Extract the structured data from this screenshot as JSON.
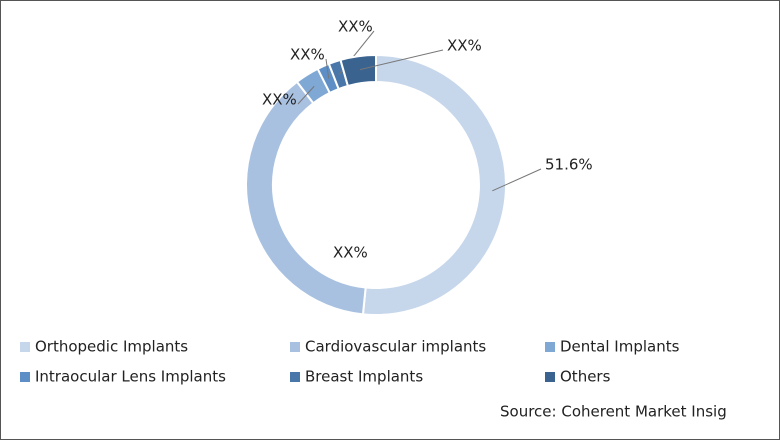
{
  "chart_data": {
    "type": "donut",
    "categories": [
      "Orthopedic Implants",
      "Cardiovascular implants",
      "Dental Implants",
      "Intraocular Lens Implants",
      "Breast Implants",
      "Others"
    ],
    "values": [
      51.6,
      38,
      3,
      1.5,
      1.5,
      4.4
    ],
    "value_labels": [
      "51.6%",
      "XX%",
      "XX%",
      "XX%",
      "XX%",
      "XX%"
    ],
    "colors": [
      "#c6d6eb",
      "#a9c1e1",
      "#80a8d4",
      "#5d8fc6",
      "#4a77aa",
      "#3a6390"
    ],
    "source": "Source: Coherent Market Insig"
  }
}
